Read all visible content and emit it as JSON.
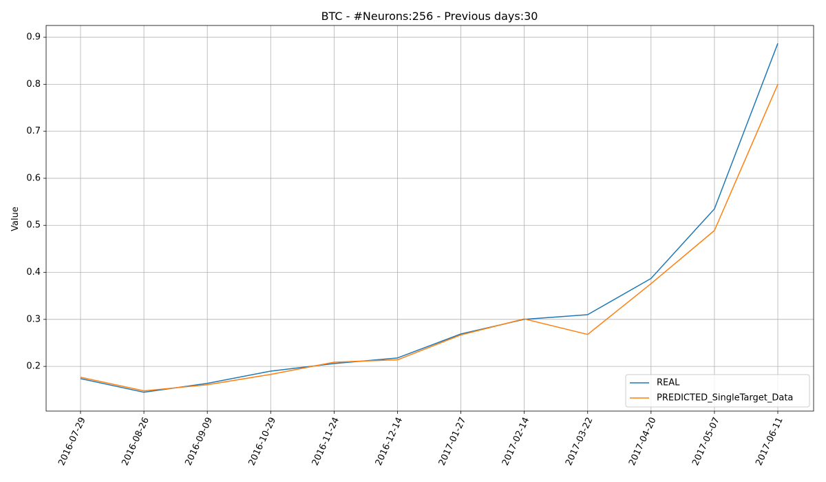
{
  "chart_data": {
    "type": "line",
    "title": "BTC - #Neurons:256 - Previous days:30",
    "xlabel": "",
    "ylabel": "Value",
    "categories": [
      "2016-07-29",
      "2016-08-26",
      "2016-09-09",
      "2016-10-29",
      "2016-11-24",
      "2016-12-14",
      "2017-01-27",
      "2017-02-14",
      "2017-03-22",
      "2017-04-20",
      "2017-05-07",
      "2017-06-11"
    ],
    "ylim": [
      0.105,
      0.925
    ],
    "yticks": [
      0.2,
      0.3,
      0.4,
      0.5,
      0.6,
      0.7,
      0.8,
      0.9
    ],
    "ytick_labels": [
      "0.2",
      "0.3",
      "0.4",
      "0.5",
      "0.6",
      "0.7",
      "0.8",
      "0.9"
    ],
    "grid": true,
    "legend_position": "bottom-right",
    "series": [
      {
        "name": "REAL",
        "color": "#1f77b4",
        "values": [
          0.174,
          0.145,
          0.164,
          0.19,
          0.206,
          0.218,
          0.269,
          0.3,
          0.31,
          0.387,
          0.535,
          0.887
        ]
      },
      {
        "name": "PREDICTED_SingleTarget_Data",
        "color": "#ff7f0e",
        "values": [
          0.177,
          0.148,
          0.161,
          0.183,
          0.209,
          0.214,
          0.267,
          0.301,
          0.268,
          0.376,
          0.489,
          0.8
        ]
      }
    ]
  }
}
